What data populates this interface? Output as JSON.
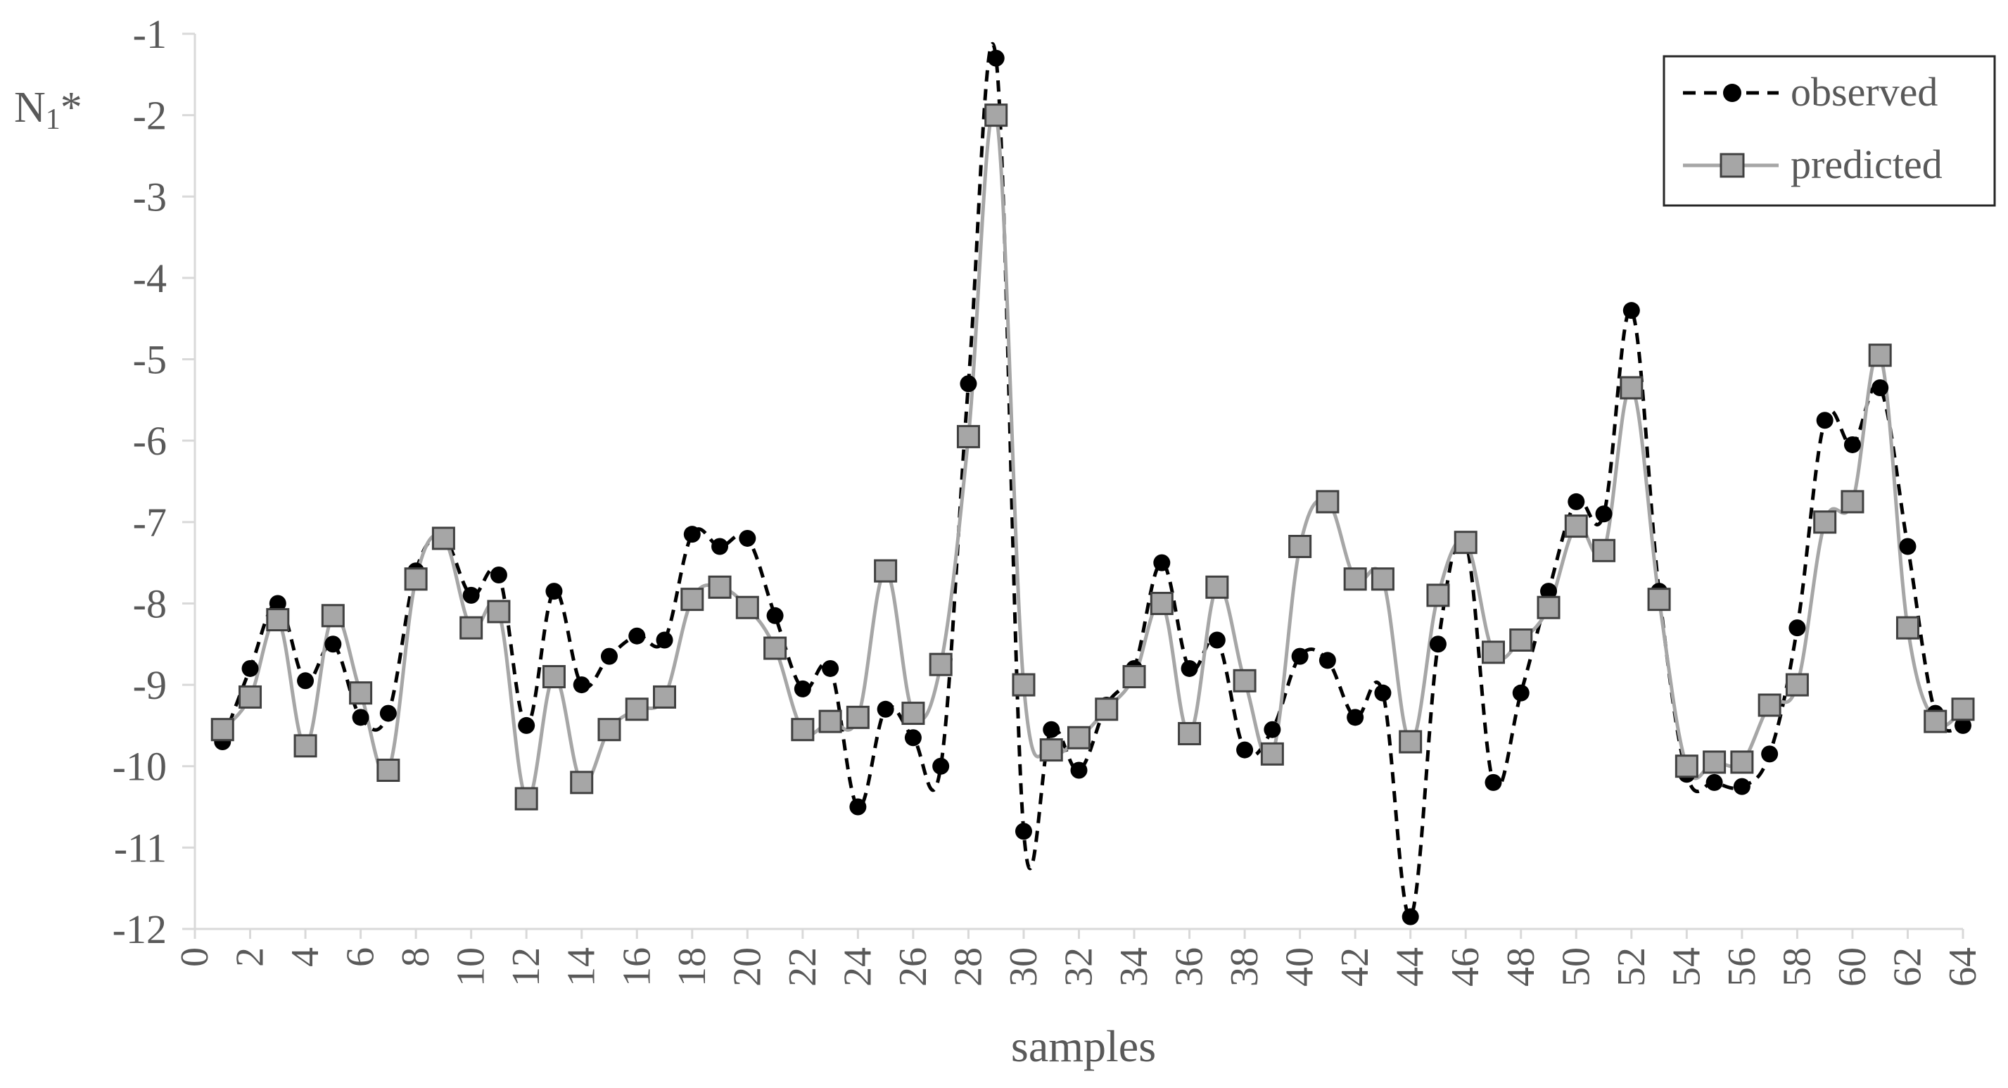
{
  "chart_data": {
    "type": "line",
    "title": "",
    "xlabel": "samples",
    "ylabel_main": "N",
    "ylabel_sub": "1",
    "ylabel_suffix": "*",
    "xlim": [
      0,
      64
    ],
    "ylim": [
      -12,
      -1
    ],
    "x_ticks": [
      0,
      2,
      4,
      6,
      8,
      10,
      12,
      14,
      16,
      18,
      20,
      22,
      24,
      26,
      28,
      30,
      32,
      34,
      36,
      38,
      40,
      42,
      44,
      46,
      48,
      50,
      52,
      54,
      56,
      58,
      60,
      62,
      64
    ],
    "y_ticks": [
      -1,
      -2,
      -3,
      -4,
      -5,
      -6,
      -7,
      -8,
      -9,
      -10,
      -11,
      -12
    ],
    "grid": false,
    "legend_position": "top-right",
    "x": [
      1,
      2,
      3,
      4,
      5,
      6,
      7,
      8,
      9,
      10,
      11,
      12,
      13,
      14,
      15,
      16,
      17,
      18,
      19,
      20,
      21,
      22,
      23,
      24,
      25,
      26,
      27,
      28,
      29,
      30,
      31,
      32,
      33,
      34,
      35,
      36,
      37,
      38,
      39,
      40,
      41,
      42,
      43,
      44,
      45,
      46,
      47,
      48,
      49,
      50,
      51,
      52,
      53,
      54,
      55,
      56,
      57,
      58,
      59,
      60,
      61,
      62,
      63,
      64
    ],
    "series": [
      {
        "name": "observed",
        "style": "dashed-circle",
        "color": "#000000",
        "values": [
          -9.7,
          -8.8,
          -8.0,
          -8.95,
          -8.5,
          -9.4,
          -9.35,
          -7.6,
          -7.2,
          -7.9,
          -7.65,
          -9.5,
          -7.85,
          -9.0,
          -8.65,
          -8.4,
          -8.45,
          -7.15,
          -7.3,
          -7.2,
          -8.15,
          -9.05,
          -8.8,
          -10.5,
          -9.3,
          -9.65,
          -10.0,
          -5.3,
          -1.3,
          -10.8,
          -9.55,
          -10.05,
          -9.25,
          -8.8,
          -7.5,
          -8.8,
          -8.45,
          -9.8,
          -9.55,
          -8.65,
          -8.7,
          -9.4,
          -9.1,
          -11.85,
          -8.5,
          -7.25,
          -10.2,
          -9.1,
          -7.85,
          -6.75,
          -6.9,
          -4.4,
          -7.85,
          -10.1,
          -10.2,
          -10.25,
          -9.85,
          -8.3,
          -5.75,
          -6.05,
          -5.35,
          -7.3,
          -9.35,
          -9.5
        ]
      },
      {
        "name": "predicted",
        "style": "solid-square",
        "color": "#a6a6a6",
        "values": [
          -9.55,
          -9.15,
          -8.2,
          -9.75,
          -8.15,
          -9.1,
          -10.05,
          -7.7,
          -7.2,
          -8.3,
          -8.1,
          -10.4,
          -8.9,
          -10.2,
          -9.55,
          -9.3,
          -9.15,
          -7.95,
          -7.8,
          -8.05,
          -8.55,
          -9.55,
          -9.45,
          -9.4,
          -7.6,
          -9.35,
          -8.75,
          -5.95,
          -2.0,
          -9.0,
          -9.8,
          -9.65,
          -9.3,
          -8.9,
          -8.0,
          -9.6,
          -7.8,
          -8.95,
          -9.85,
          -7.3,
          -6.75,
          -7.7,
          -7.7,
          -9.7,
          -7.9,
          -7.25,
          -8.6,
          -8.45,
          -8.05,
          -7.05,
          -7.35,
          -5.35,
          -7.95,
          -10.0,
          -9.95,
          -9.95,
          -9.25,
          -9.0,
          -7.0,
          -6.75,
          -4.95,
          -8.3,
          -9.45,
          -9.3
        ]
      }
    ]
  }
}
